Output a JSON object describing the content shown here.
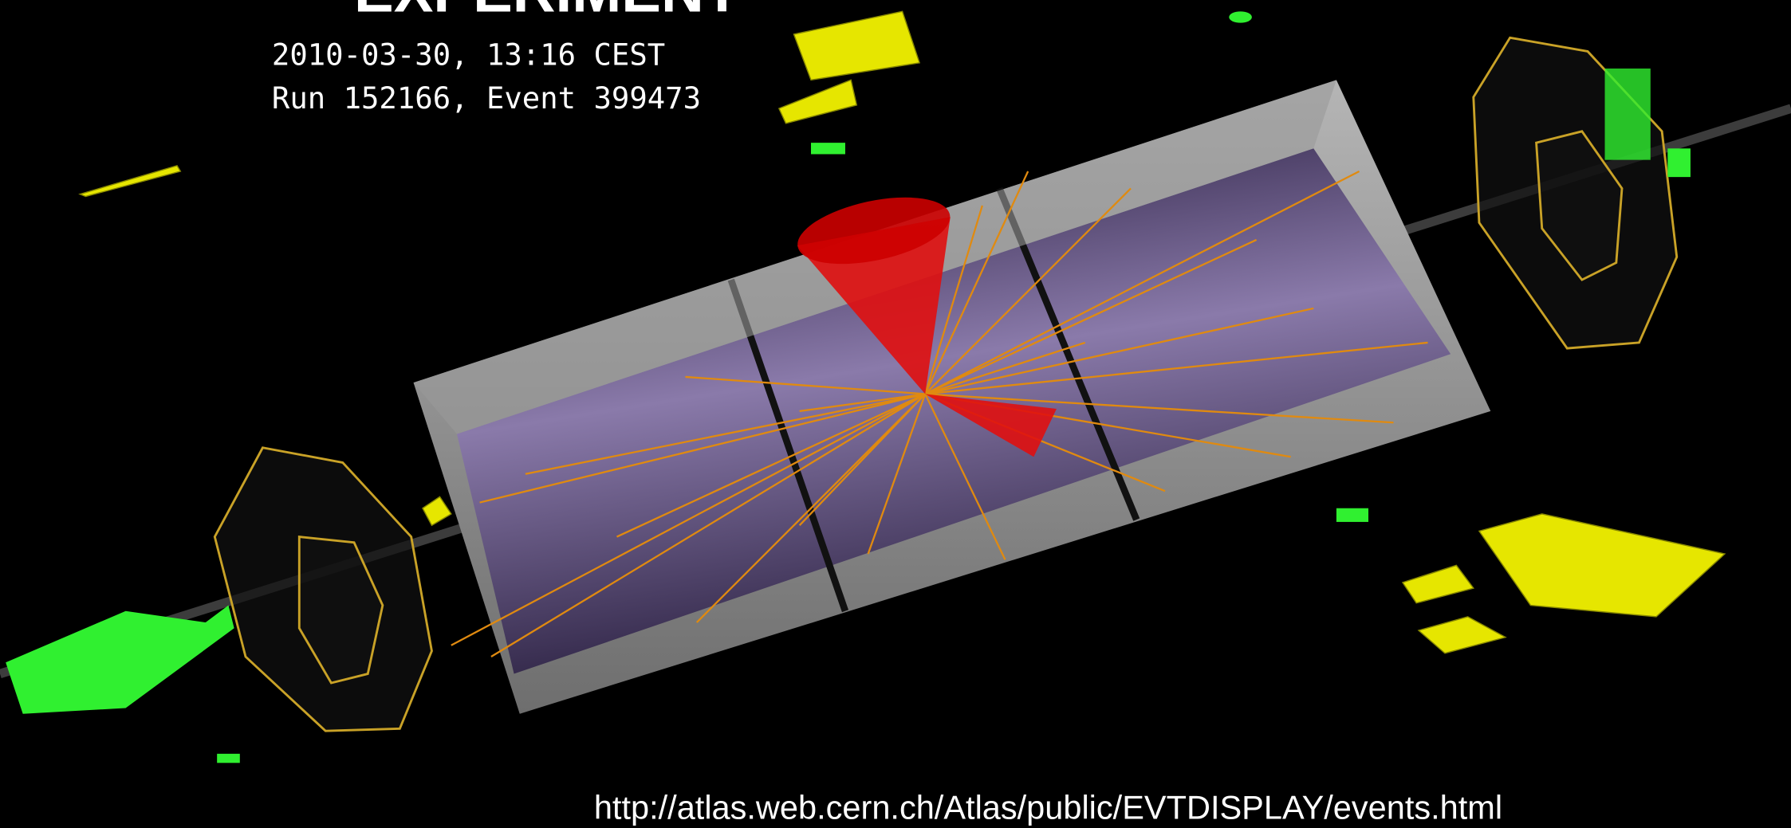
{
  "header": {
    "title": "EXPERIMENT",
    "date": "2010-03-30, 13:16 CEST",
    "event": "Run 152166, Event 399473"
  },
  "footer": {
    "url": "http://atlas.web.cern.ch/Atlas/public/EVTDISPLAY/events.html"
  }
}
